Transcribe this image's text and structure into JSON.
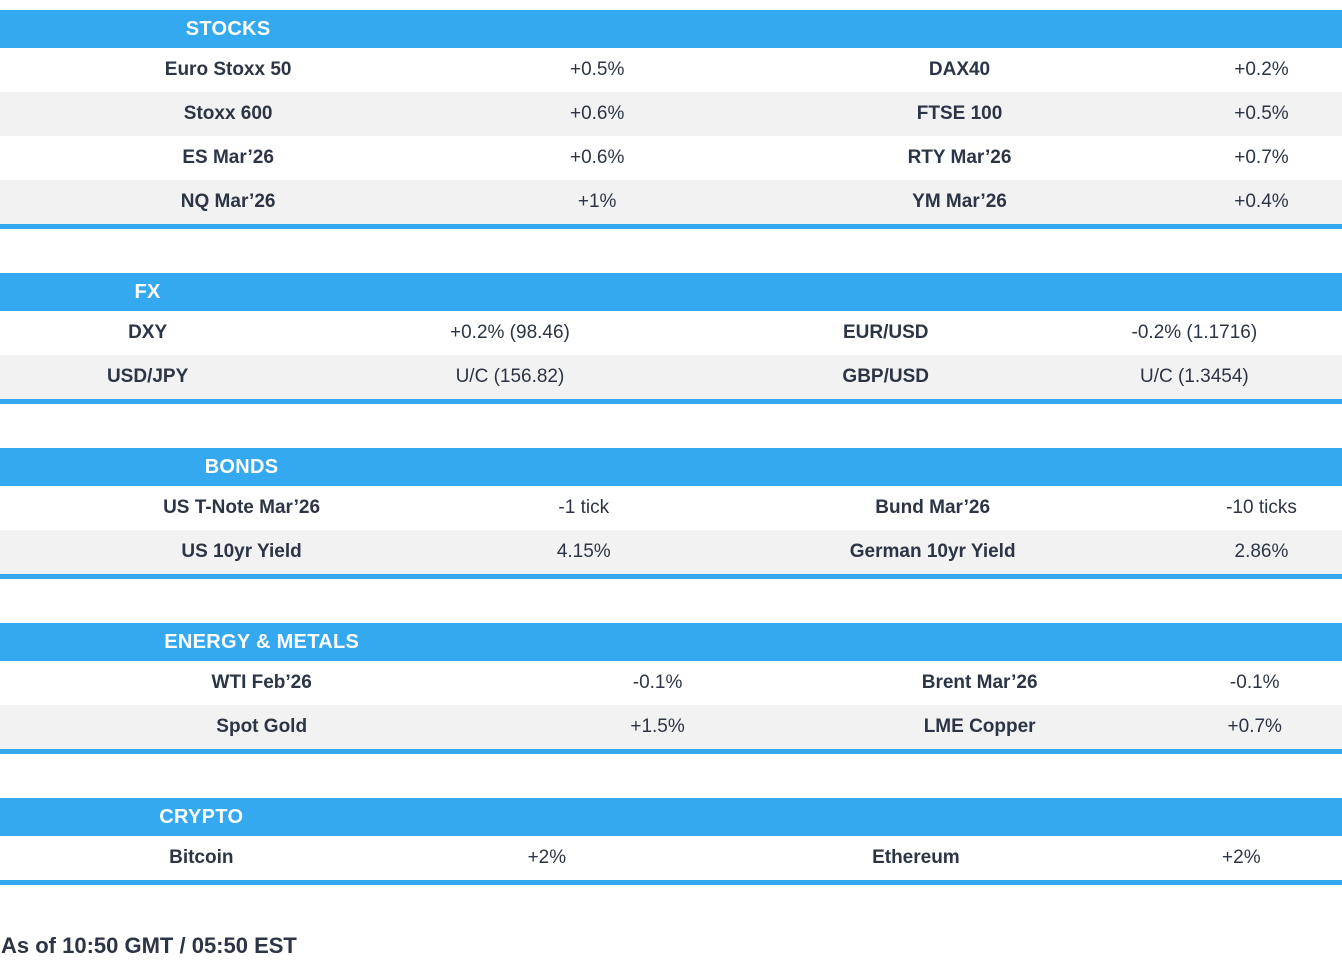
{
  "colors": {
    "accent": "#35a9f0",
    "row_alt": "#f2f2f2",
    "text": "#2c3545",
    "header_text": "#ffffff"
  },
  "sections": [
    {
      "title": "STOCKS",
      "rows": [
        [
          "Euro Stoxx 50",
          "+0.5%",
          "DAX40",
          "+0.2%"
        ],
        [
          "Stoxx 600",
          "+0.6%",
          "FTSE 100",
          "+0.5%"
        ],
        [
          "ES Mar’26",
          "+0.6%",
          "RTY Mar’26",
          "+0.7%"
        ],
        [
          "NQ Mar’26",
          "+1%",
          "YM Mar’26",
          "+0.4%"
        ]
      ]
    },
    {
      "title": "FX",
      "rows": [
        [
          "DXY",
          "+0.2% (98.46)",
          "EUR/USD",
          "-0.2% (1.1716)"
        ],
        [
          "USD/JPY",
          "U/C (156.82)",
          "GBP/USD",
          "U/C (1.3454)"
        ]
      ]
    },
    {
      "title": "BONDS",
      "rows": [
        [
          "US T-Note Mar’26",
          "-1 tick",
          "Bund Mar’26",
          "-10 ticks"
        ],
        [
          "US 10yr Yield",
          "4.15%",
          "German 10yr Yield",
          "2.86%"
        ]
      ]
    },
    {
      "title": "ENERGY & METALS",
      "rows": [
        [
          "WTI Feb’26",
          "-0.1%",
          "Brent Mar’26",
          "-0.1%"
        ],
        [
          "Spot Gold",
          "+1.5%",
          "LME Copper",
          "+0.7%"
        ]
      ]
    },
    {
      "title": "CRYPTO",
      "rows": [
        [
          "Bitcoin",
          "+2%",
          "Ethereum",
          "+2%"
        ]
      ]
    }
  ],
  "footer": {
    "as_of": "As of 10:50 GMT / 05:50 EST"
  }
}
